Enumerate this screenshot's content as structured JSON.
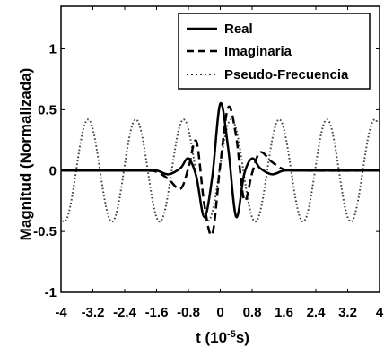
{
  "chart_data": {
    "type": "line",
    "title": "",
    "xlabel": "t (10",
    "xlabel_exp": "-5",
    "xlabel_unit": "s)",
    "ylabel": "Magnitud (Normalizada)",
    "xlim": [
      -4,
      4
    ],
    "ylim": [
      -1,
      1.35
    ],
    "x_ticks": [
      -4,
      -3.2,
      -2.4,
      -1.6,
      -0.8,
      0,
      0.8,
      1.6,
      2.4,
      3.2,
      4
    ],
    "x_tick_labels": [
      "-4",
      "-3.2",
      "-2.4",
      "-1.6",
      "-0.8",
      "0",
      "0.8",
      "1.6",
      "2.4",
      "3.2",
      "4"
    ],
    "y_ticks": [
      -1,
      -0.5,
      0,
      0.5,
      1
    ],
    "y_tick_labels": [
      "-1",
      "-0.5",
      "0",
      "0.5",
      "1"
    ],
    "grid": false,
    "legend_position": "top-right",
    "series": [
      {
        "name": "Real",
        "style": "solid",
        "x": [
          -4,
          -2.0,
          -1.6,
          -1.3,
          -1.0,
          -0.8,
          -0.6,
          -0.4,
          -0.2,
          0,
          0.2,
          0.4,
          0.6,
          0.8,
          1.0,
          1.3,
          1.6,
          2.0,
          4
        ],
        "values": [
          0,
          0,
          0,
          -0.03,
          0.02,
          0.1,
          -0.05,
          -0.38,
          -0.05,
          0.55,
          0.18,
          -0.38,
          -0.03,
          0.1,
          0.02,
          -0.03,
          0,
          0,
          0
        ]
      },
      {
        "name": "Imaginaria",
        "style": "dashed",
        "x": [
          -4,
          -2.0,
          -1.6,
          -1.3,
          -1.0,
          -0.8,
          -0.6,
          -0.4,
          -0.2,
          0,
          0.2,
          0.4,
          0.6,
          0.8,
          1.0,
          1.3,
          1.6,
          2.0,
          4
        ],
        "values": [
          0,
          0,
          -0.01,
          -0.07,
          -0.15,
          0.02,
          0.24,
          -0.28,
          -0.52,
          0.05,
          0.52,
          0.28,
          -0.24,
          -0.02,
          0.15,
          0.07,
          0.01,
          0,
          0
        ]
      },
      {
        "name": "Pseudo-Frecuencia",
        "style": "dotted",
        "amplitude": 0.42,
        "period": 1.2,
        "phase_peak_at": 0.28,
        "x_range": [
          -4,
          3.95
        ]
      }
    ]
  }
}
